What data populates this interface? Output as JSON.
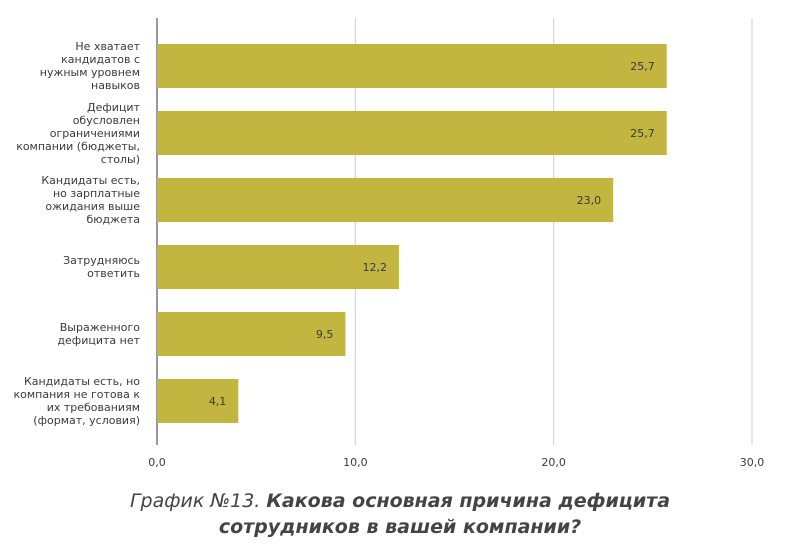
{
  "chart_data": {
    "type": "bar",
    "orientation": "horizontal",
    "categories": [
      [
        "Не хватает",
        "кандидатов с",
        "нужным уровнем",
        "навыков"
      ],
      [
        "Дефицит",
        "обусловлен",
        "ограничениями",
        "компании (бюджеты,",
        "столы)"
      ],
      [
        "Кандидаты есть,",
        "но зарплатные",
        "ожидания выше",
        "бюджета"
      ],
      [
        "Затрудняюсь",
        "ответить"
      ],
      [
        "Выраженного",
        "дефицита нет"
      ],
      [
        "Кандидаты есть, но",
        "компания не готова к",
        "их требованиям",
        "(формат, условия)"
      ]
    ],
    "values": [
      25.7,
      25.7,
      23.0,
      12.2,
      9.5,
      4.1
    ],
    "value_labels": [
      "25,7",
      "25,7",
      "23,0",
      "12,2",
      "9,5",
      "4,1"
    ],
    "xlim": [
      0,
      30
    ],
    "x_ticks": [
      0,
      10,
      20,
      30
    ],
    "x_tick_labels": [
      "0,0",
      "10,0",
      "20,0",
      "30,0"
    ],
    "grid": true,
    "bar_color": "#c2b640",
    "grid_color": "#cfcfcf",
    "caption_number": "График №13. ",
    "caption_question_line1": "Какова основная причина дефицита",
    "caption_question_line2": "сотрудников в вашей компании?"
  }
}
